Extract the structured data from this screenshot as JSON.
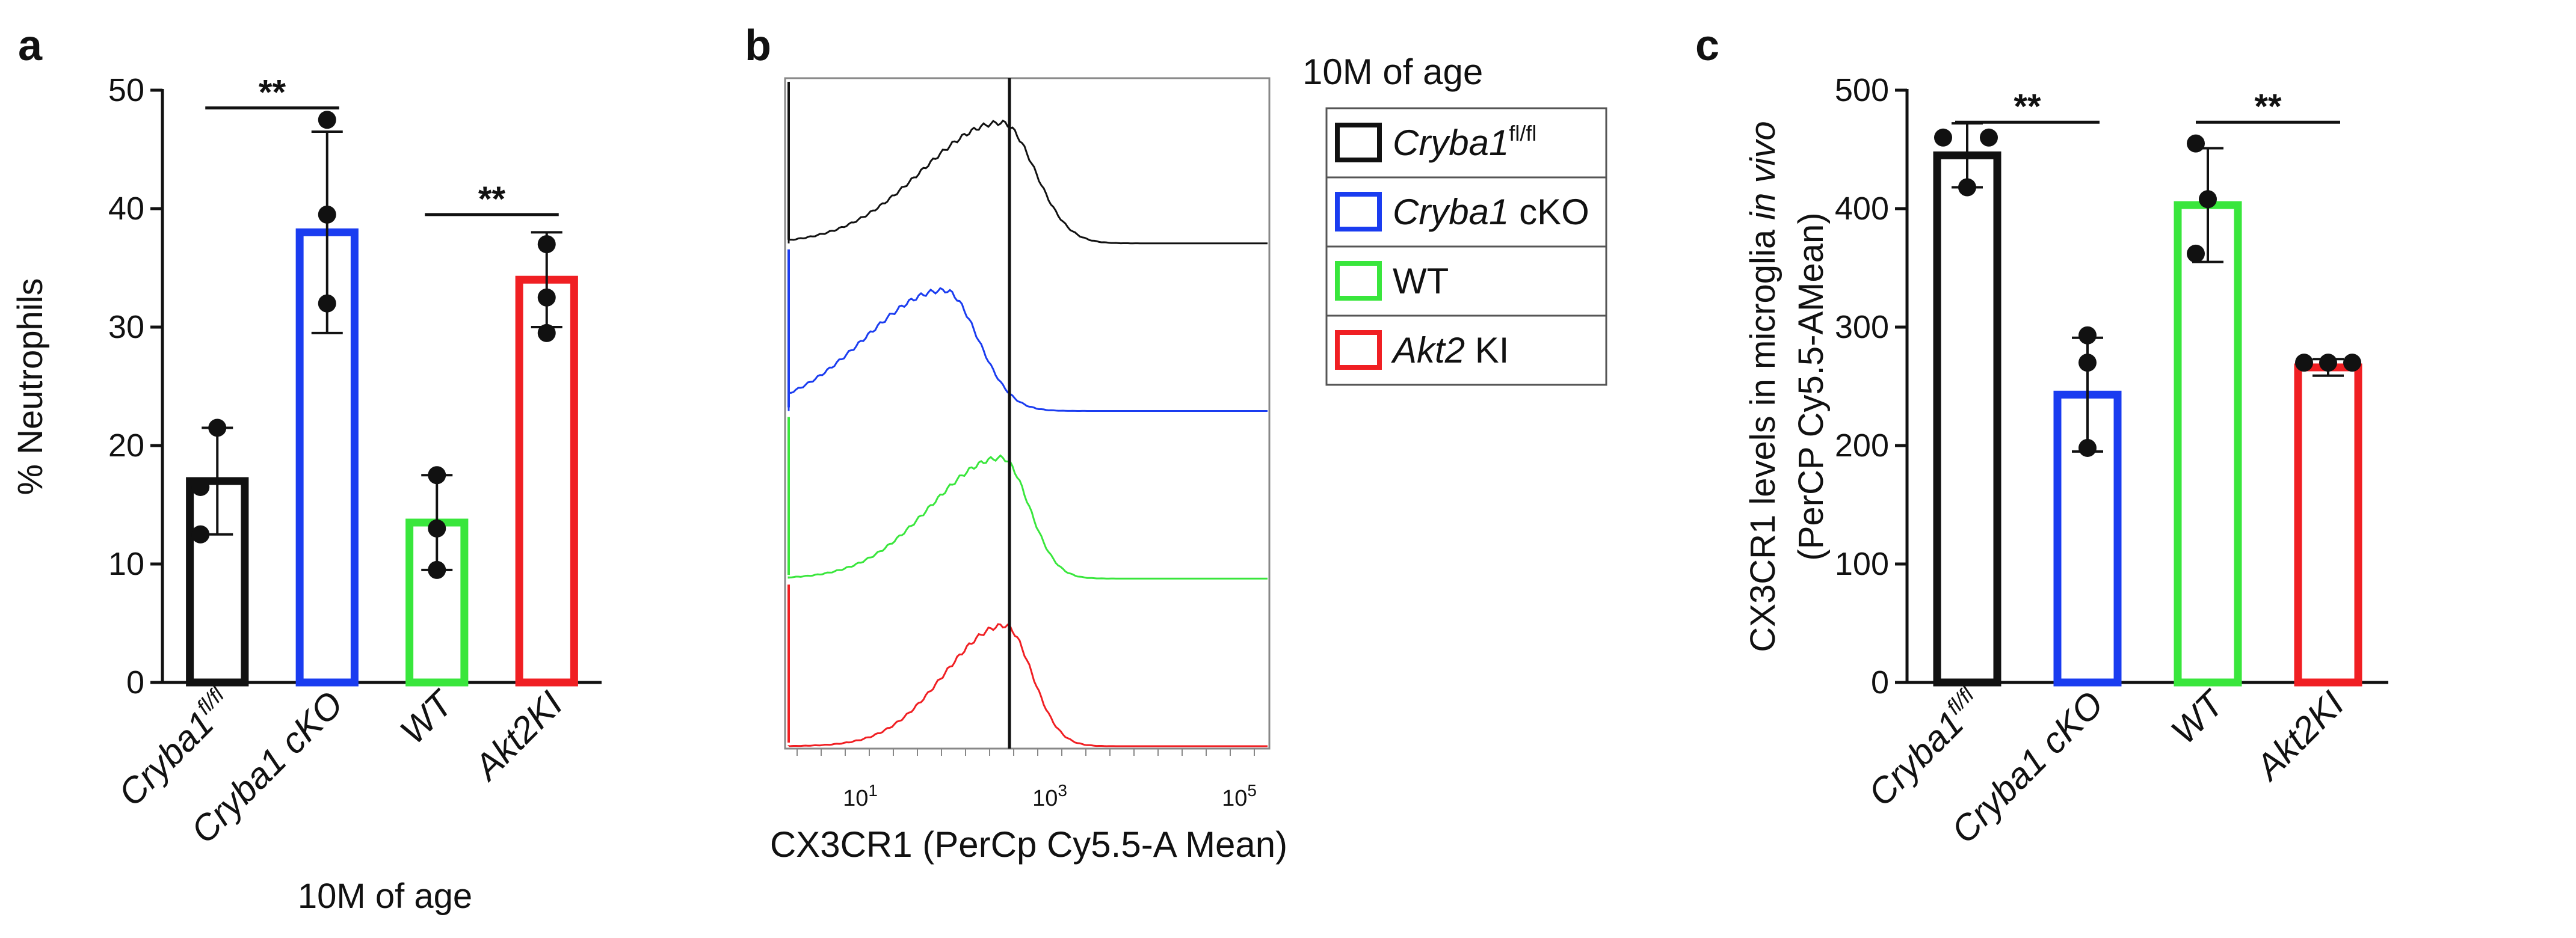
{
  "colors": {
    "black": "#111111",
    "blue": "#1a3cf0",
    "green": "#39e63c",
    "red": "#f01f23"
  },
  "chart_data": [
    {
      "panel": "a",
      "type": "bar",
      "ylabel": "% Neutrophils",
      "xlabel": "10M of age",
      "ylim": [
        0,
        50
      ],
      "yticks": [
        0,
        10,
        20,
        30,
        40,
        50
      ],
      "categories": [
        "Cryba1fl/fl",
        "Cryba1 cKO",
        "WT",
        "Akt2KI"
      ],
      "category_labels": [
        {
          "main": "Cryba1",
          "sup": "fl/fl"
        },
        {
          "main": "Cryba1",
          "rest": " cKO"
        },
        {
          "main": "WT"
        },
        {
          "main": "Akt2",
          "rest": "KI"
        }
      ],
      "values": [
        17,
        38,
        13.5,
        34
      ],
      "errors": [
        4.5,
        8.5,
        4,
        4
      ],
      "points": [
        [
          21.5,
          16.5,
          12.5
        ],
        [
          47.5,
          39.5,
          32
        ],
        [
          17.5,
          13,
          9.5
        ],
        [
          37,
          32.5,
          29.5
        ]
      ],
      "colors": [
        "#111111",
        "#1a3cf0",
        "#39e63c",
        "#f01f23"
      ],
      "significance": [
        {
          "from": 0,
          "to": 1,
          "label": "**",
          "y": 48.5
        },
        {
          "from": 2,
          "to": 3,
          "label": "**",
          "y": 39.5
        }
      ]
    },
    {
      "panel": "b",
      "type": "histogram",
      "xlabel": "CX3CR1 (PerCp Cy5.5-A Mean)",
      "xticks": [
        {
          "base": "10",
          "exp": "1"
        },
        {
          "base": "10",
          "exp": "3"
        },
        {
          "base": "10",
          "exp": "5"
        }
      ],
      "legend_title": "10M of age",
      "series": [
        {
          "name": "Cryba1",
          "sup": "fl/fl",
          "rest": "",
          "color": "#111111"
        },
        {
          "name": "Cryba1",
          "sup": "",
          "rest": " cKO",
          "color": "#1a3cf0"
        },
        {
          "name": "WT",
          "sup": "",
          "rest": "",
          "color": "#39e63c",
          "italic": false
        },
        {
          "name": "Akt2",
          "sup": "",
          "rest": " KI",
          "color": "#f01f23"
        }
      ]
    },
    {
      "panel": "c",
      "type": "bar",
      "ylabel_line1": "CX3CR1 levels in microglia ",
      "ylabel_italic": "in vivo",
      "ylabel_line2": "(PerCP Cy5.5-AMean)",
      "ylim": [
        0,
        500
      ],
      "yticks": [
        0,
        100,
        200,
        300,
        400,
        500
      ],
      "categories": [
        "Cryba1fl/fl",
        "Cryba1 cKO",
        "WT",
        "Akt2KI"
      ],
      "category_labels": [
        {
          "main": "Cryba1",
          "sup": "fl/fl"
        },
        {
          "main": "Cryba1",
          "rest": " cKO"
        },
        {
          "main": "WT"
        },
        {
          "main": "Akt2",
          "rest": "KI"
        }
      ],
      "values": [
        445,
        243,
        403,
        266
      ],
      "errors": [
        27,
        48,
        48,
        7
      ],
      "points": [
        [
          460,
          418,
          460
        ],
        [
          293,
          270,
          198
        ],
        [
          455,
          408,
          362
        ],
        [
          270,
          270,
          270
        ]
      ],
      "colors": [
        "#111111",
        "#1a3cf0",
        "#39e63c",
        "#f01f23"
      ],
      "significance": [
        {
          "from": 0,
          "to": 1,
          "label": "**",
          "y": 473
        },
        {
          "from": 2,
          "to": 3,
          "label": "**",
          "y": 473
        }
      ]
    }
  ],
  "panel_letters": [
    "a",
    "b",
    "c"
  ]
}
